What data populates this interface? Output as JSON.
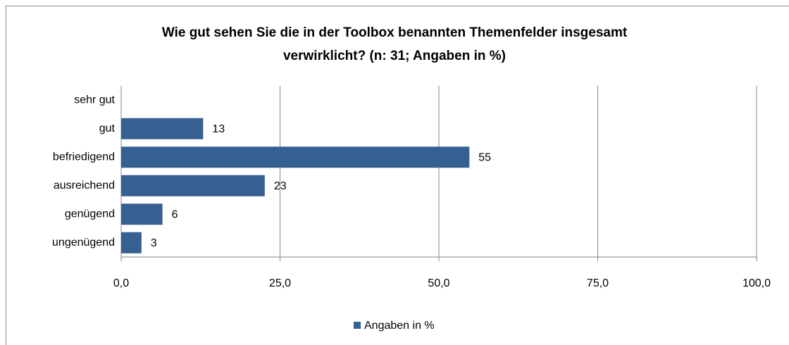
{
  "chart_data": {
    "type": "barh",
    "title": [
      "Wie gut sehen Sie die in der Toolbox benannten Themenfelder  insgesamt",
      "verwirklicht? (n: 31; Angaben in %)"
    ],
    "categories": [
      "sehr gut",
      "gut",
      "befriedigend",
      "ausreichend",
      "genügend",
      "ungenügend"
    ],
    "series": [
      {
        "name": "Angaben in %",
        "color": "#366092",
        "values": [
          null,
          12.9,
          54.8,
          22.6,
          6.5,
          3.2
        ],
        "value_labels": [
          null,
          "13",
          "55",
          "23",
          "6",
          "3"
        ]
      }
    ],
    "xlim": [
      0,
      100
    ],
    "xticks": [
      {
        "value": 0,
        "label": "0,0"
      },
      {
        "value": 25,
        "label": "25,0"
      },
      {
        "value": 50,
        "label": "50,0"
      },
      {
        "value": 75,
        "label": "75,0"
      },
      {
        "value": 100,
        "label": "100,0"
      }
    ],
    "grid": true,
    "legend": "bottom"
  }
}
